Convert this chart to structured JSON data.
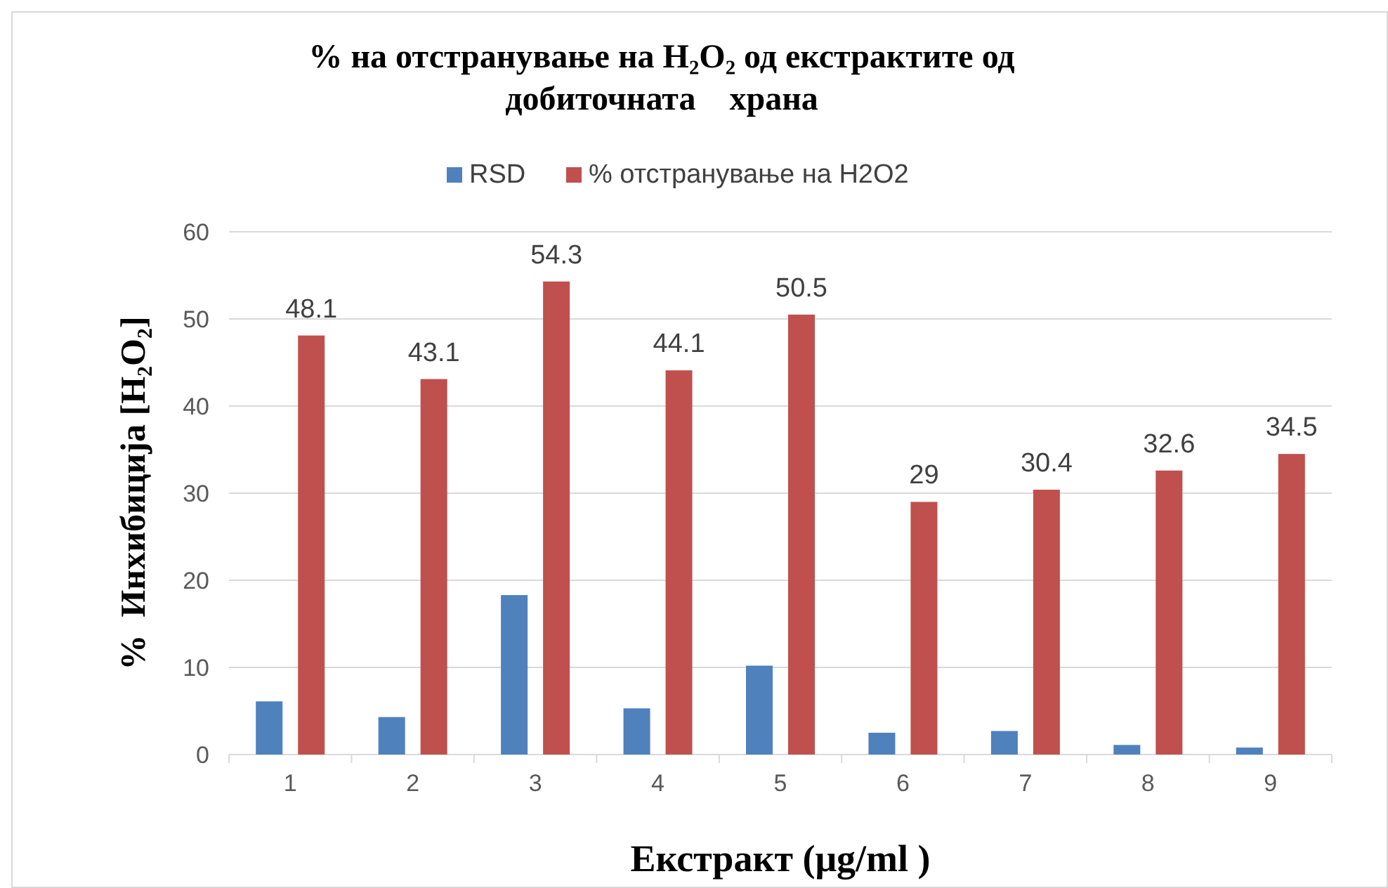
{
  "chart_data": {
    "type": "bar",
    "title": "% на отстранување на H₂O₂ од екстрактите од добиточната    храна",
    "xlabel": "Екстракт (μg/ml )",
    "ylabel": "%  Инхибиција [H₂O₂]",
    "categories": [
      "1",
      "2",
      "3",
      "4",
      "5",
      "6",
      "7",
      "8",
      "9"
    ],
    "series": [
      {
        "name": "RSD",
        "color": "#4f81bd",
        "values": [
          6.1,
          4.3,
          18.3,
          5.3,
          10.2,
          2.5,
          2.7,
          1.1,
          0.8
        ]
      },
      {
        "name": "% отстранување на H2O2",
        "color": "#c0504d",
        "values": [
          48.1,
          43.1,
          54.3,
          44.1,
          50.5,
          29,
          30.4,
          32.6,
          34.5
        ],
        "value_labels": [
          "48.1",
          "43.1",
          "54.3",
          "44.1",
          "50.5",
          "29",
          "30.4",
          "32.6",
          "34.5"
        ]
      }
    ],
    "ylim": [
      0,
      60
    ],
    "yticks": [
      0,
      10,
      20,
      30,
      40,
      50,
      60
    ],
    "grid": "y",
    "legend": "top"
  }
}
